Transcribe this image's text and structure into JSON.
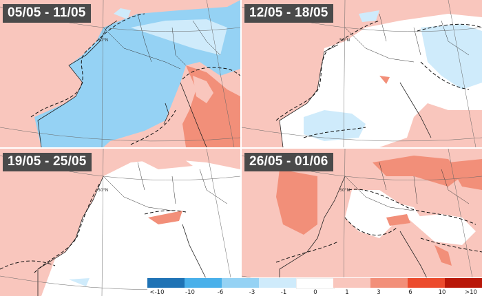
{
  "panels": [
    {
      "title": "05/05 - 11/05",
      "lat_label": "50°N"
    },
    {
      "title": "12/05 - 18/05",
      "lat_label": "50°N"
    },
    {
      "title": "19/05 - 25/05",
      "lat_label": "50°N"
    },
    {
      "title": "26/05 - 01/06",
      "lat_label": "50°N"
    }
  ],
  "legend": {
    "colors": [
      "#0b3b66",
      "#1f73b5",
      "#49b0ea",
      "#95d2f4",
      "#cfebfb",
      "#ffffff",
      "#f9c6bd",
      "#f28f79",
      "#ec4b2d",
      "#b91708",
      "#6e0a05"
    ],
    "ticks": [
      "<-10",
      "-10",
      "-6",
      "-3",
      "-1",
      "0",
      "1",
      "3",
      "6",
      "10",
      ">10"
    ]
  },
  "colors": {
    "warm_light": "#f9c6bd",
    "warm_mid": "#f28f79",
    "cool_light": "#cfebfb",
    "cool_mid": "#95d2f4",
    "neutral": "#ffffff"
  }
}
